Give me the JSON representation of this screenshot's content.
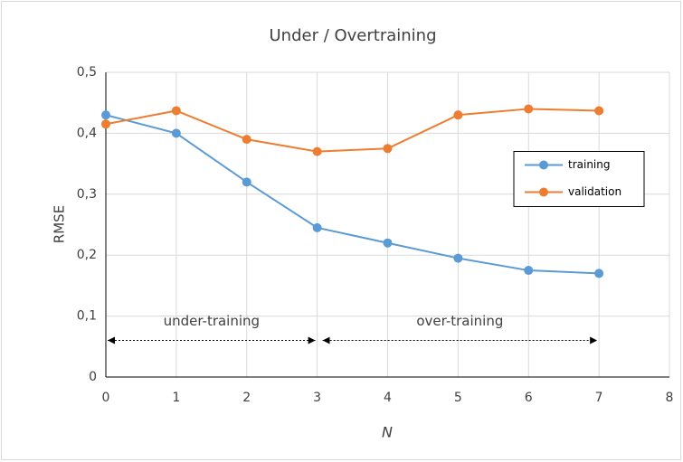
{
  "chart_data": {
    "type": "line",
    "title": "Under / Overtraining",
    "x_label": "N",
    "y_label": "RMSE",
    "x": [
      0,
      1,
      2,
      3,
      4,
      5,
      6,
      7
    ],
    "series": [
      {
        "name": "training",
        "color": "#5b9bd5",
        "values": [
          0.43,
          0.4,
          0.32,
          0.245,
          0.22,
          0.195,
          0.175,
          0.17
        ]
      },
      {
        "name": "validation",
        "color": "#ed7d31",
        "values": [
          0.415,
          0.437,
          0.39,
          0.37,
          0.375,
          0.43,
          0.44,
          0.437
        ]
      }
    ],
    "xlim": [
      0,
      8
    ],
    "xticks": [
      0,
      1,
      2,
      3,
      4,
      5,
      6,
      7,
      8
    ],
    "ylim": [
      0,
      0.5
    ],
    "yticks": [
      0,
      {
        "value": 0.1,
        "label": "0,1"
      },
      {
        "value": 0.2,
        "label": "0,2"
      },
      {
        "value": 0.3,
        "label": "0,3"
      },
      {
        "value": 0.4,
        "label": "0,4"
      },
      {
        "value": 0.5,
        "label": "0,5"
      }
    ],
    "grid": true,
    "legend_position": "right",
    "annotations": [
      {
        "text": "under-training",
        "x_start": 0,
        "x_end": 3,
        "y": 0.06
      },
      {
        "text": "over-training",
        "x_start": 3,
        "x_end": 7,
        "y": 0.06
      }
    ]
  }
}
